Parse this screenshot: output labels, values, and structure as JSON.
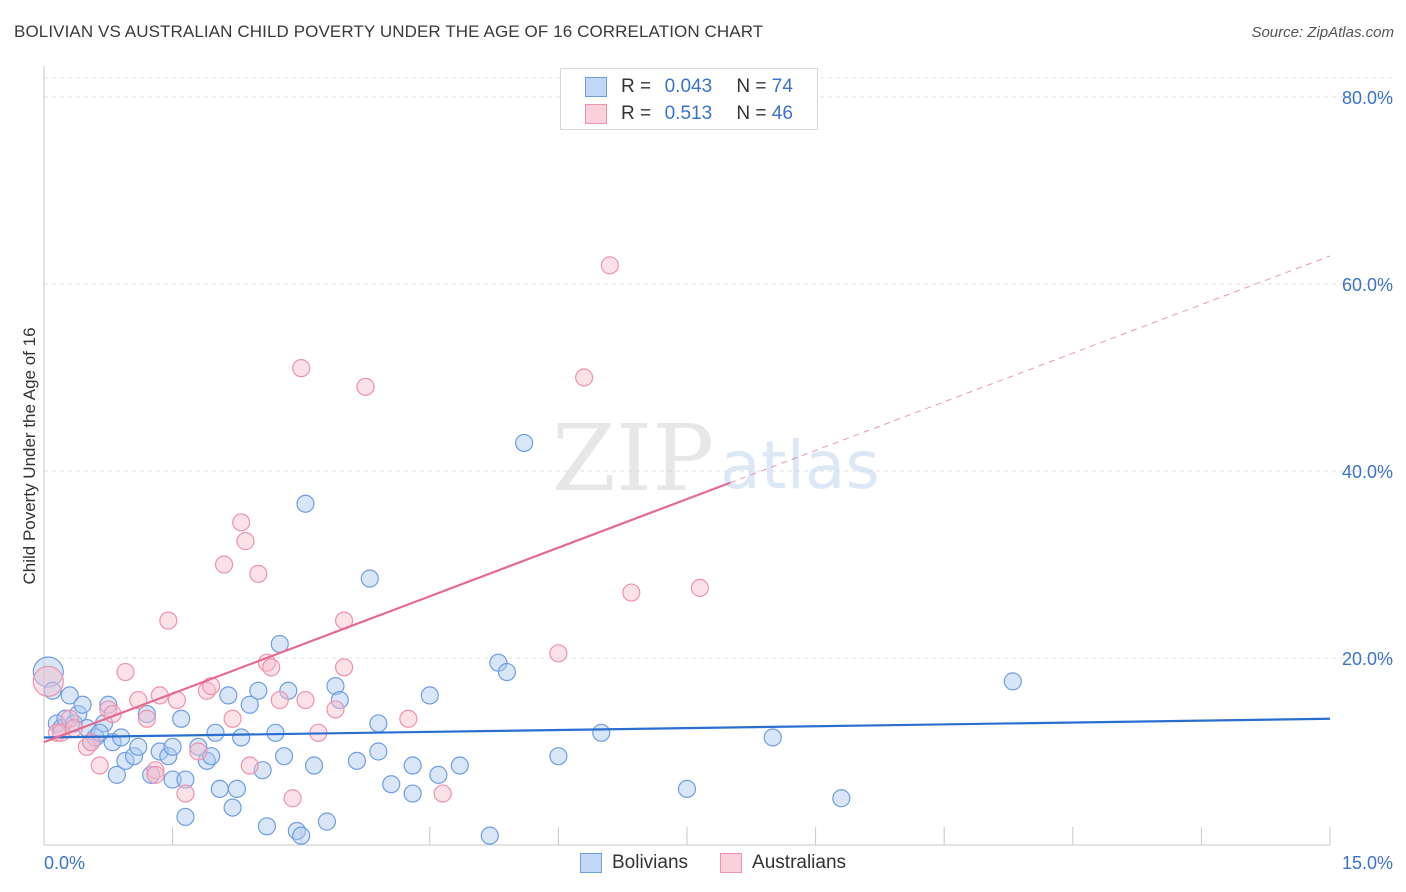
{
  "title": "BOLIVIAN VS AUSTRALIAN CHILD POVERTY UNDER THE AGE OF 16 CORRELATION CHART",
  "source": "Source: ZipAtlas.com",
  "watermark": {
    "zip": "ZIP",
    "atlas": "atlas"
  },
  "legend": {
    "rows": [
      {
        "r_label": "R =",
        "r_value": "0.043",
        "n_label": "N =",
        "n_value": "74"
      },
      {
        "r_label": "R =",
        "r_value": "0.513",
        "n_label": "N =",
        "n_value": "46"
      }
    ]
  },
  "colors": {
    "blue_fill": "#a9c7f0",
    "blue_stroke": "#6f9ee0",
    "blue_line": "#2a6fd0",
    "pink_fill": "#f6bccd",
    "pink_stroke": "#ee93ae",
    "pink_line": "#e46a92",
    "axis_text": "#3b73c9",
    "grid": "#e2e2e2"
  },
  "chart_data": {
    "type": "scatter",
    "title": "BOLIVIAN VS AUSTRALIAN CHILD POVERTY UNDER THE AGE OF 16 CORRELATION CHART",
    "ylabel": "Child Poverty Under the Age of 16",
    "xlabel": "",
    "xlim": [
      0,
      15
    ],
    "ylim": [
      0,
      80
    ],
    "x_tick_labels": [
      "0.0%",
      "15.0%"
    ],
    "y_ticks": [
      20,
      40,
      60,
      80
    ],
    "y_tick_labels": [
      "20.0%",
      "40.0%",
      "60.0%",
      "80.0%"
    ],
    "x_minor_ticks": [
      0,
      1.5,
      3,
      4.5,
      6,
      7.5,
      9,
      10.5,
      12,
      13.5,
      15
    ],
    "series": [
      {
        "name": "Bolivians",
        "r": 0.043,
        "n": 74,
        "trend": {
          "x": [
            0,
            15
          ],
          "y": [
            11.5,
            13.5
          ],
          "dashed_from": null
        },
        "points": [
          [
            0.05,
            18.5
          ],
          [
            0.1,
            16.5
          ],
          [
            0.15,
            13
          ],
          [
            0.2,
            12.5
          ],
          [
            0.25,
            13.5
          ],
          [
            0.3,
            16
          ],
          [
            0.35,
            13
          ],
          [
            0.4,
            14
          ],
          [
            0.45,
            15
          ],
          [
            0.5,
            12.5
          ],
          [
            0.55,
            11
          ],
          [
            0.6,
            11.5
          ],
          [
            0.7,
            13
          ],
          [
            0.75,
            15
          ],
          [
            0.8,
            11
          ],
          [
            0.85,
            7.5
          ],
          [
            0.9,
            11.5
          ],
          [
            0.95,
            9
          ],
          [
            1.05,
            9.5
          ],
          [
            1.1,
            10.5
          ],
          [
            1.2,
            14
          ],
          [
            1.25,
            7.5
          ],
          [
            1.35,
            10
          ],
          [
            1.45,
            9.5
          ],
          [
            1.5,
            10.5
          ],
          [
            1.5,
            7
          ],
          [
            1.6,
            13.5
          ],
          [
            1.65,
            7
          ],
          [
            1.65,
            3
          ],
          [
            1.8,
            10.5
          ],
          [
            1.9,
            9
          ],
          [
            1.95,
            9.5
          ],
          [
            2.0,
            12
          ],
          [
            2.05,
            6
          ],
          [
            2.15,
            16
          ],
          [
            2.2,
            4
          ],
          [
            2.25,
            6
          ],
          [
            2.3,
            11.5
          ],
          [
            2.4,
            15
          ],
          [
            2.5,
            16.5
          ],
          [
            2.55,
            8
          ],
          [
            2.6,
            2
          ],
          [
            2.7,
            12
          ],
          [
            2.75,
            21.5
          ],
          [
            2.8,
            9.5
          ],
          [
            2.85,
            16.5
          ],
          [
            2.95,
            1.5
          ],
          [
            3.0,
            1
          ],
          [
            3.05,
            36.5
          ],
          [
            3.15,
            8.5
          ],
          [
            3.3,
            2.5
          ],
          [
            3.4,
            17
          ],
          [
            3.45,
            15.5
          ],
          [
            3.65,
            9
          ],
          [
            3.8,
            28.5
          ],
          [
            3.9,
            13
          ],
          [
            3.9,
            10
          ],
          [
            4.05,
            6.5
          ],
          [
            4.3,
            5.5
          ],
          [
            4.3,
            8.5
          ],
          [
            4.5,
            16
          ],
          [
            4.6,
            7.5
          ],
          [
            4.85,
            8.5
          ],
          [
            5.2,
            1
          ],
          [
            5.3,
            19.5
          ],
          [
            5.4,
            18.5
          ],
          [
            5.6,
            43
          ],
          [
            6.0,
            9.5
          ],
          [
            6.5,
            12
          ],
          [
            7.5,
            6
          ],
          [
            8.5,
            11.5
          ],
          [
            9.3,
            5
          ],
          [
            11.3,
            17.5
          ],
          [
            0.65,
            12
          ]
        ]
      },
      {
        "name": "Australians",
        "r": 0.513,
        "n": 46,
        "trend": {
          "x": [
            0,
            15
          ],
          "y": [
            11.0,
            63.0
          ],
          "dashed_from": 8.0
        },
        "points": [
          [
            0.05,
            17.5
          ],
          [
            0.15,
            12
          ],
          [
            0.2,
            12
          ],
          [
            0.3,
            13.5
          ],
          [
            0.35,
            12.5
          ],
          [
            0.5,
            10.5
          ],
          [
            0.55,
            11
          ],
          [
            0.65,
            8.5
          ],
          [
            0.75,
            14.5
          ],
          [
            0.8,
            14
          ],
          [
            0.95,
            18.5
          ],
          [
            1.1,
            15.5
          ],
          [
            1.2,
            13.5
          ],
          [
            1.3,
            8
          ],
          [
            1.3,
            7.5
          ],
          [
            1.35,
            16
          ],
          [
            1.45,
            24
          ],
          [
            1.55,
            15.5
          ],
          [
            1.65,
            5.5
          ],
          [
            1.8,
            10
          ],
          [
            1.9,
            16.5
          ],
          [
            1.95,
            17
          ],
          [
            2.1,
            30
          ],
          [
            2.2,
            13.5
          ],
          [
            2.3,
            34.5
          ],
          [
            2.35,
            32.5
          ],
          [
            2.4,
            8.5
          ],
          [
            2.5,
            29
          ],
          [
            2.6,
            19.5
          ],
          [
            2.65,
            19
          ],
          [
            2.75,
            15.5
          ],
          [
            2.9,
            5
          ],
          [
            3.0,
            51
          ],
          [
            3.05,
            15.5
          ],
          [
            3.2,
            12
          ],
          [
            3.4,
            14.5
          ],
          [
            3.5,
            19
          ],
          [
            3.5,
            24
          ],
          [
            3.75,
            49
          ],
          [
            4.25,
            13.5
          ],
          [
            4.65,
            5.5
          ],
          [
            6.0,
            20.5
          ],
          [
            6.3,
            50
          ],
          [
            6.6,
            62
          ],
          [
            6.85,
            27
          ],
          [
            7.65,
            27.5
          ]
        ]
      }
    ]
  },
  "bottom_legend": [
    "Bolivians",
    "Australians"
  ]
}
